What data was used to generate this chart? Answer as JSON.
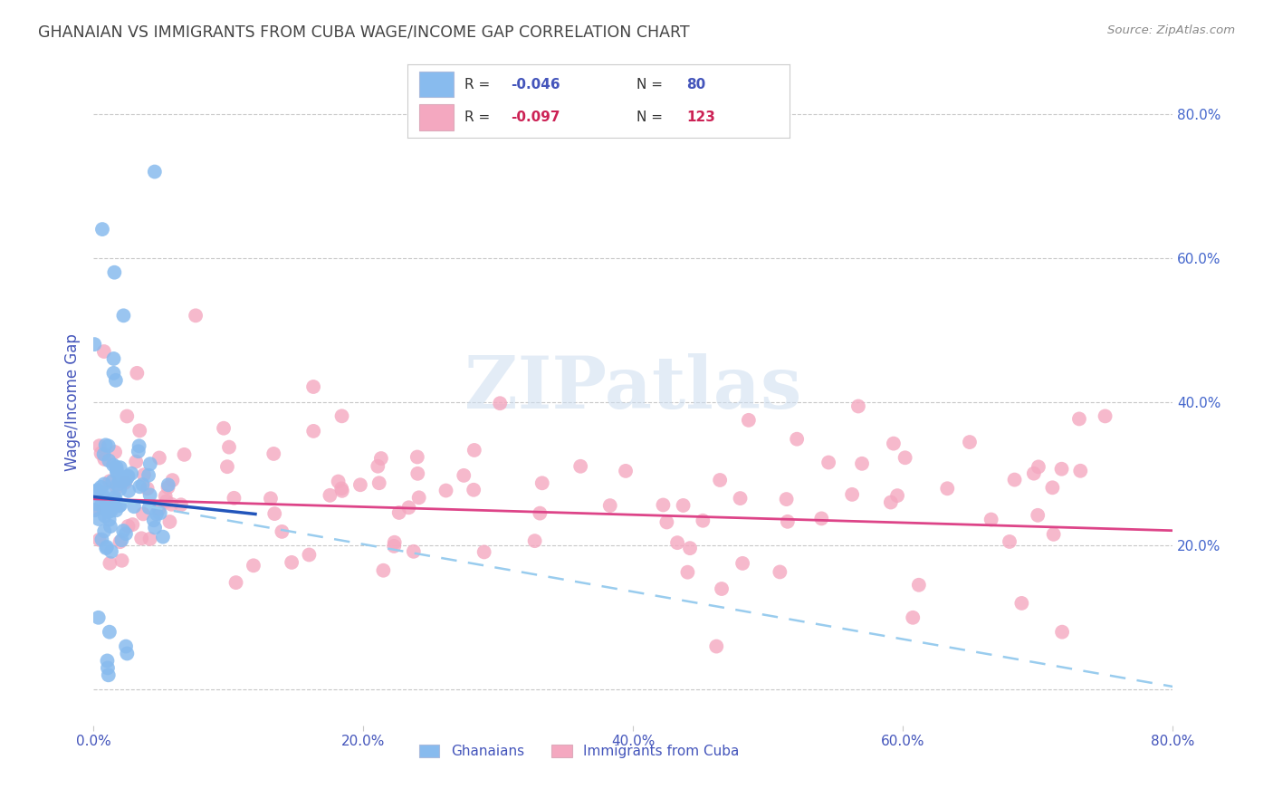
{
  "title": "GHANAIAN VS IMMIGRANTS FROM CUBA WAGE/INCOME GAP CORRELATION CHART",
  "source": "Source: ZipAtlas.com",
  "ylabel": "Wage/Income Gap",
  "xlabel": "",
  "xlim": [
    0.0,
    0.8
  ],
  "ylim": [
    -0.05,
    0.85
  ],
  "right_yticks": [
    0.2,
    0.4,
    0.6,
    0.8
  ],
  "right_yticklabels": [
    "20.0%",
    "40.0%",
    "60.0%",
    "80.0%"
  ],
  "xtick_labels": [
    "0.0%",
    "20.0%",
    "40.0%",
    "60.0%",
    "80.0%"
  ],
  "xtick_positions": [
    0.0,
    0.2,
    0.4,
    0.6,
    0.8
  ],
  "legend_labels": [
    "Ghanaians",
    "Immigrants from Cuba"
  ],
  "watermark": "ZIPatlas",
  "blue_R": -0.046,
  "blue_N": 80,
  "pink_R": -0.097,
  "pink_N": 123,
  "blue_scatter_color": "#88bbee",
  "pink_scatter_color": "#f4a8c0",
  "blue_line_color": "#2255bb",
  "pink_line_color": "#dd4488",
  "blue_dashed_color": "#99ccee",
  "background_color": "#ffffff",
  "grid_color": "#c8c8c8",
  "title_color": "#444444",
  "axis_label_color": "#4455bb",
  "right_axis_color": "#4466cc"
}
